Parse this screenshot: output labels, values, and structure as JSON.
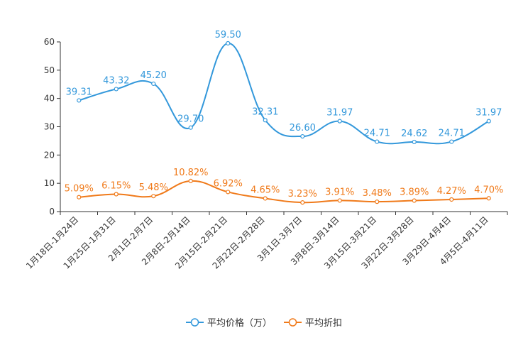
{
  "chart_data": {
    "type": "line",
    "title": "",
    "xlabel": "",
    "ylabel": "",
    "ylim": [
      0,
      60
    ],
    "yticks": [
      0,
      10,
      20,
      30,
      40,
      50,
      60
    ],
    "grid": false,
    "legend_position": "bottom-center",
    "categories": [
      "1月18日-1月24日",
      "1月25日-1月31日",
      "2月1日-2月7日",
      "2月8日-2月14日",
      "2月15日-2月21日",
      "2月22日-2月28日",
      "3月1日-3月7日",
      "3月8日-3月14日",
      "3月15日-3月21日",
      "3月22日-3月28日",
      "3月29日-4月4日",
      "4月5日-4月11日"
    ],
    "series": [
      {
        "name": "平均价格（万）",
        "color": "#3398DB",
        "values": [
          39.31,
          43.32,
          45.2,
          29.7,
          59.5,
          32.31,
          26.6,
          31.97,
          24.71,
          24.62,
          24.71,
          31.97
        ],
        "labels": [
          "39.31",
          "43.32",
          "45.20",
          "29.70",
          "59.50",
          "32.31",
          "26.60",
          "31.97",
          "24.71",
          "24.62",
          "24.71",
          "31.97"
        ]
      },
      {
        "name": "平均折扣",
        "color": "#F07A1A",
        "values": [
          5.09,
          6.15,
          5.48,
          10.82,
          6.92,
          4.65,
          3.23,
          3.91,
          3.48,
          3.89,
          4.27,
          4.7
        ],
        "labels": [
          "5.09%",
          "6.15%",
          "5.48%",
          "10.82%",
          "6.92%",
          "4.65%",
          "3.23%",
          "3.91%",
          "3.48%",
          "3.89%",
          "4.27%",
          "4.70%"
        ]
      }
    ]
  }
}
